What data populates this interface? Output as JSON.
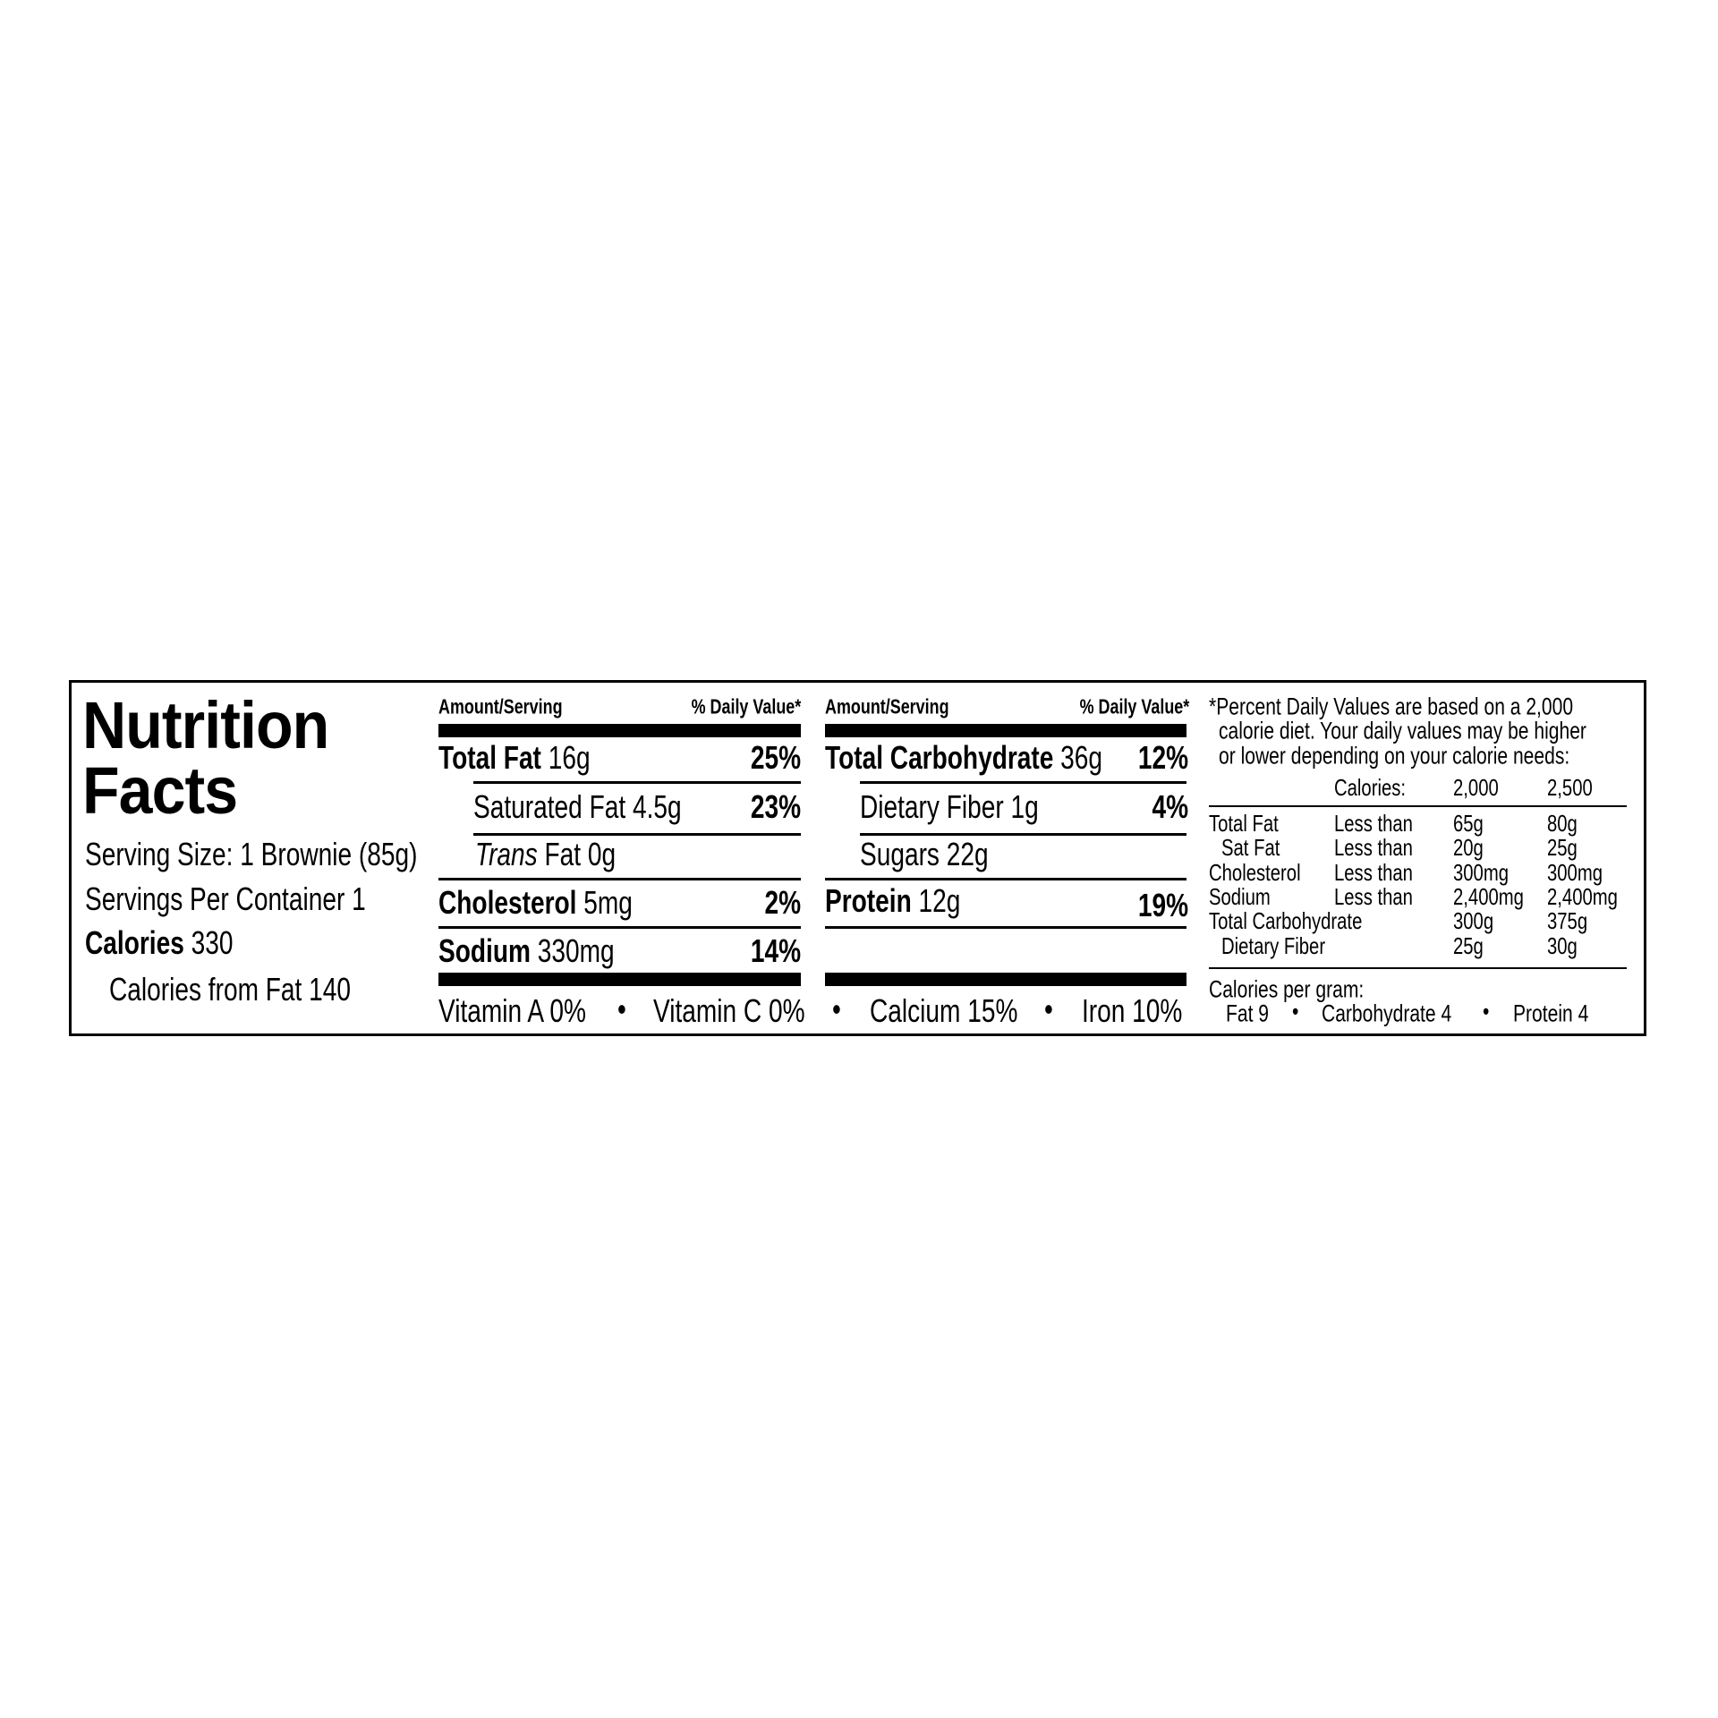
{
  "title_line1": "Nutrition",
  "title_line2": "Facts",
  "serving_size": "Serving Size: 1 Brownie (85g)",
  "servings_per_container": "Servings Per Container 1",
  "calories": {
    "label": "Calories",
    "value": "330"
  },
  "calories_from_fat": "Calories from Fat 140",
  "header": {
    "amount": "Amount/Serving",
    "dv": "% Daily Value*"
  },
  "col1": [
    {
      "label": "Total Fat",
      "amount": "16g",
      "dv": "25%"
    },
    {
      "label": "Saturated Fat",
      "amount": "4.5g",
      "dv": "23%"
    },
    {
      "label": "Trans",
      "amount": "Fat 0g",
      "dv": ""
    },
    {
      "label": "Cholesterol",
      "amount": "5mg",
      "dv": "2%"
    },
    {
      "label": "Sodium",
      "amount": "330mg",
      "dv": "14%"
    }
  ],
  "col2": [
    {
      "label": "Total Carbohydrate",
      "amount": "36g",
      "dv": "12%"
    },
    {
      "label": "Dietary Fiber",
      "amount": "1g",
      "dv": "4%"
    },
    {
      "label": "Sugars",
      "amount": "22g",
      "dv": ""
    },
    {
      "label": "Protein",
      "amount": "12g",
      "dv": "19%"
    }
  ],
  "vitamins": [
    "Vitamin A 0%",
    "Vitamin C 0%",
    "Calcium 15%",
    "Iron 10%"
  ],
  "footnote": [
    "*Percent Daily Values are based on a 2,000",
    "calorie diet. Your daily values may be higher",
    "or lower depending on your calorie needs:"
  ],
  "dv_table": {
    "header": [
      "Calories:",
      "2,000",
      "2,500"
    ],
    "rows": [
      [
        "Total Fat",
        "Less than",
        "65g",
        "80g"
      ],
      [
        "Sat Fat",
        "Less than",
        "20g",
        "25g"
      ],
      [
        "Cholesterol",
        "Less than",
        "300mg",
        "300mg"
      ],
      [
        "Sodium",
        "Less than",
        "2,400mg",
        "2,400mg"
      ],
      [
        "Total Carbohydrate",
        "",
        "300g",
        "375g"
      ],
      [
        "Dietary Fiber",
        "",
        "25g",
        "30g"
      ]
    ]
  },
  "cal_per_gram": {
    "label": "Calories per gram:",
    "items": [
      "Fat 9",
      "Carbohydrate 4",
      "Protein 4"
    ]
  },
  "bullet": "•"
}
